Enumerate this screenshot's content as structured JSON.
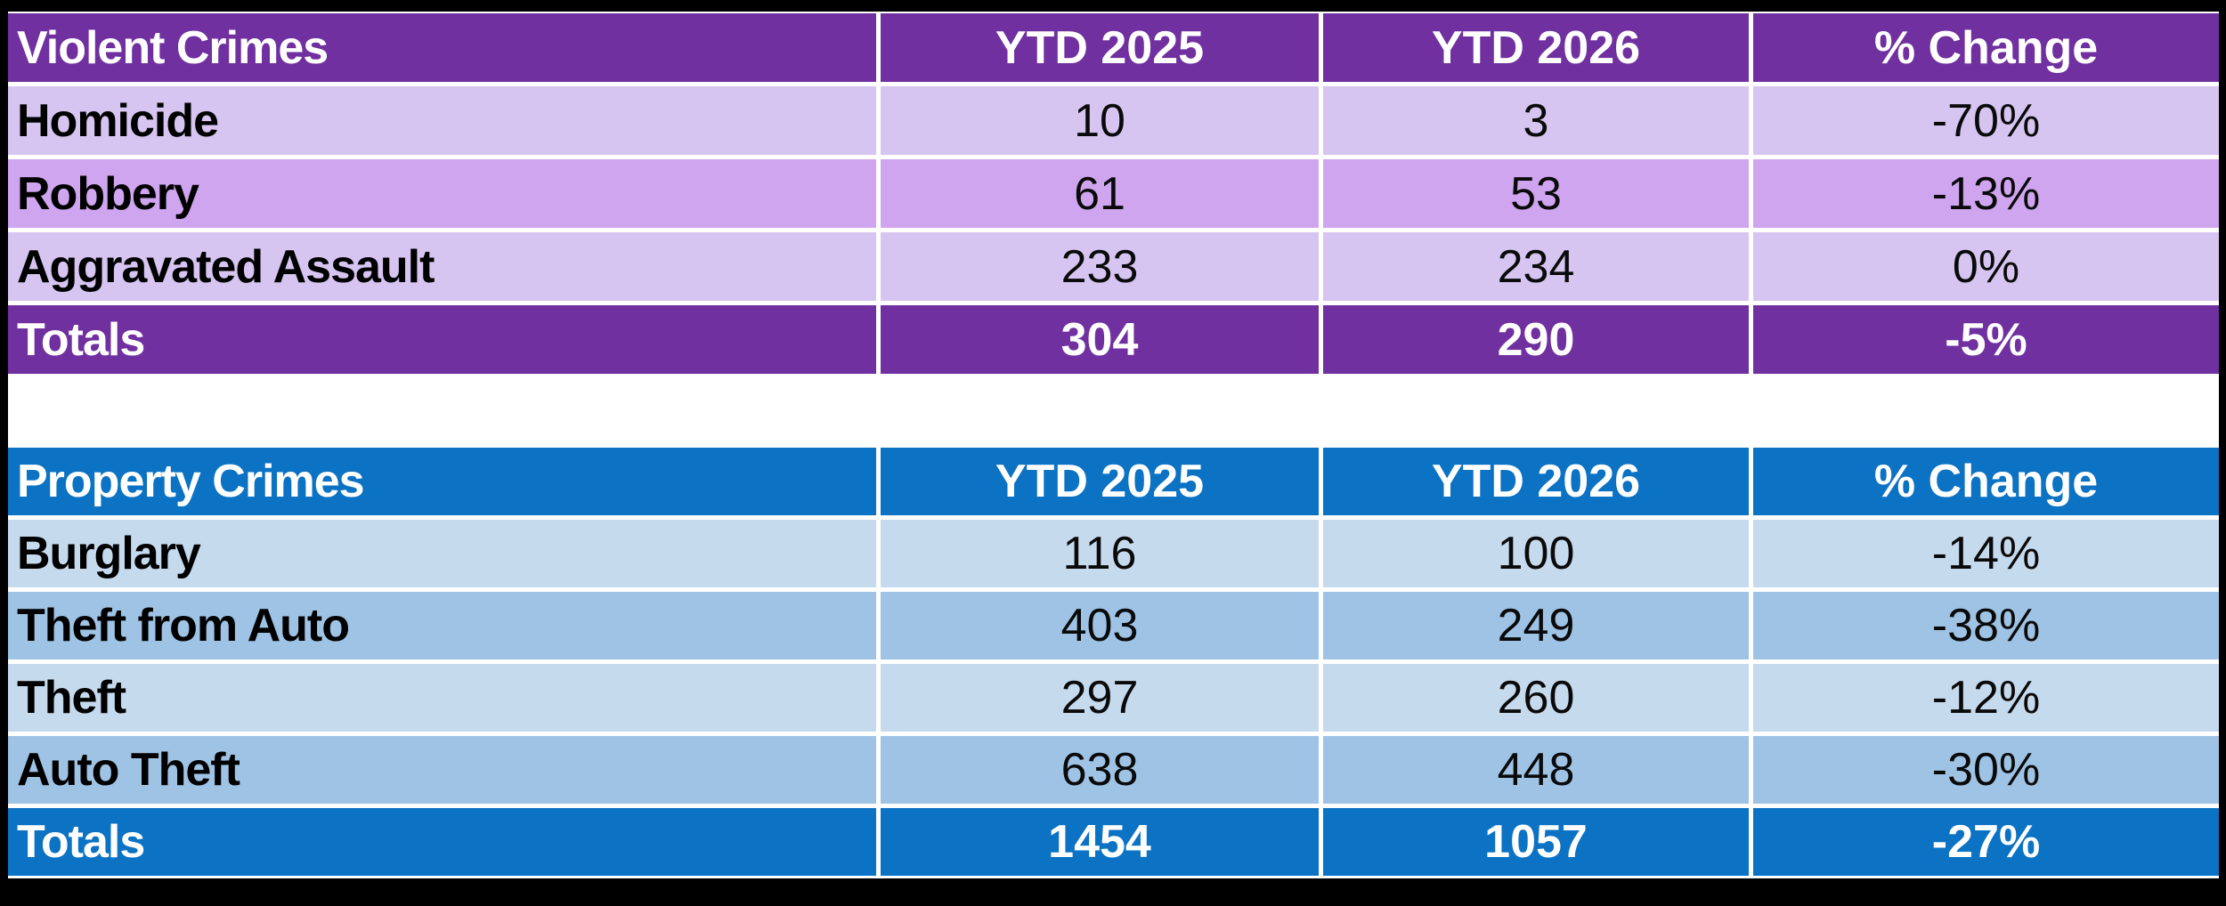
{
  "colors": {
    "frame": "#000000",
    "grid_border": "#FFFFFF",
    "violent_header": "#7030A0",
    "violent_row_light": "#D6C5F1",
    "violent_row_medium": "#D0A5EF",
    "property_header": "#0B72C4",
    "property_row_light": "#C6DAEE",
    "property_row_medium": "#9FC3E5",
    "header_text": "#FFFFFF",
    "body_text": "#000000"
  },
  "chart_data": [
    {
      "type": "table",
      "title": "Violent Crimes",
      "columns": [
        "Violent Crimes",
        "YTD 2025",
        "YTD 2026",
        "% Change"
      ],
      "rows": [
        [
          "Homicide",
          10,
          3,
          "-70%"
        ],
        [
          "Robbery",
          61,
          53,
          "-13%"
        ],
        [
          "Aggravated Assault",
          233,
          234,
          "0%"
        ],
        [
          "Totals",
          304,
          290,
          "-5%"
        ]
      ],
      "legend_position": "none",
      "grid": true
    },
    {
      "type": "table",
      "title": "Property Crimes",
      "columns": [
        "Property Crimes",
        "YTD 2025",
        "YTD 2026",
        "% Change"
      ],
      "rows": [
        [
          "Burglary",
          116,
          100,
          "-14%"
        ],
        [
          "Theft from Auto",
          403,
          249,
          "-38%"
        ],
        [
          "Theft",
          297,
          260,
          "-12%"
        ],
        [
          "Auto Theft",
          638,
          448,
          "-30%"
        ],
        [
          "Totals",
          1454,
          1057,
          "-27%"
        ]
      ],
      "legend_position": "none",
      "grid": true
    }
  ]
}
